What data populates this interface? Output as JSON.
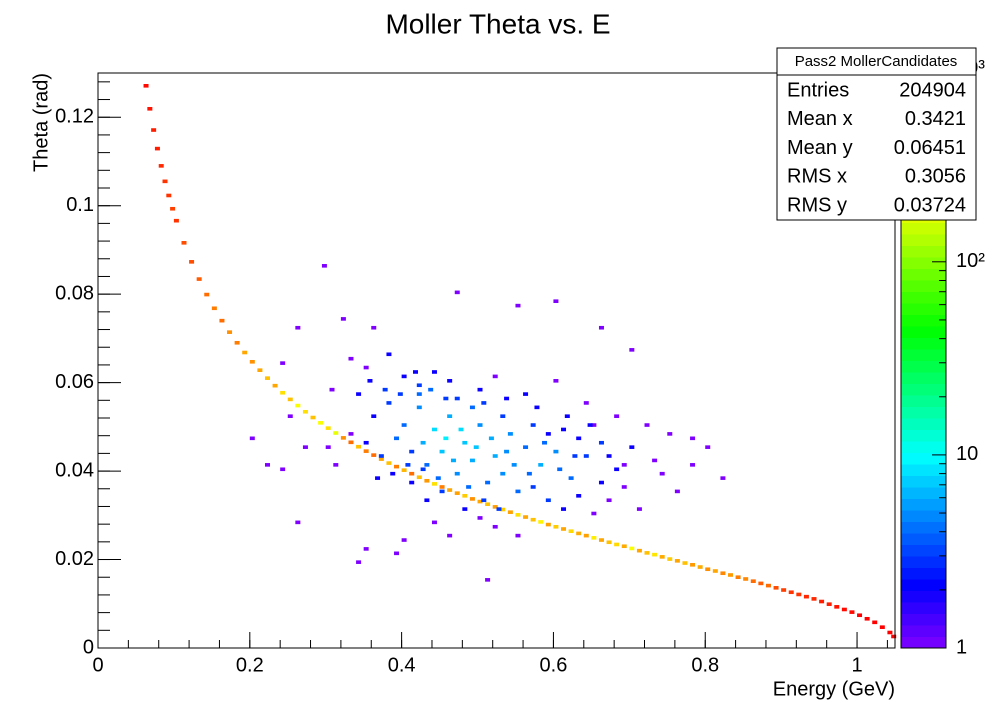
{
  "chart_data": {
    "type": "hist2d",
    "title": "Moller Theta vs. E",
    "x_label": "Energy (GeV)",
    "y_label": "Theta (rad)",
    "xlim": [
      0,
      1.05
    ],
    "ylim": [
      0,
      0.13
    ],
    "xticks": [
      0,
      0.2,
      0.4,
      0.6,
      0.8,
      1
    ],
    "yticks": [
      0,
      0.02,
      0.04,
      0.06,
      0.08,
      0.1,
      0.12
    ],
    "zlim": [
      1,
      950
    ],
    "zticks": [
      1,
      10,
      {
        "value": 100,
        "label": "10²"
      },
      {
        "value": 1000,
        "label": "10³"
      }
    ],
    "z_log": true,
    "palette": "rainbow",
    "stats": {
      "title": "Pass2 MollerCandidates",
      "entries": [
        {
          "label": "Entries",
          "value": 204904
        },
        {
          "label": "Mean x",
          "value": 0.3421
        },
        {
          "label": "Mean y",
          "value": 0.06451
        },
        {
          "label": "RMS x",
          "value": 0.3056
        },
        {
          "label": "RMS y",
          "value": 0.03724
        }
      ]
    },
    "cells": {
      "x": [
        0.06,
        0.065,
        0.07,
        0.075,
        0.08,
        0.085,
        0.09,
        0.095,
        0.1,
        0.11,
        0.12,
        0.13,
        0.14,
        0.15,
        0.16,
        0.17,
        0.18,
        0.19,
        0.2,
        0.21,
        0.22,
        0.23,
        0.24,
        0.25,
        0.26,
        0.27,
        0.28,
        0.29,
        0.3,
        0.31,
        0.32,
        0.33,
        0.34,
        0.35,
        0.36,
        0.37,
        0.38,
        0.39,
        0.4,
        0.41,
        0.42,
        0.43,
        0.44,
        0.45,
        0.46,
        0.47,
        0.48,
        0.49,
        0.5,
        0.51,
        0.52,
        0.53,
        0.54,
        0.55,
        0.56,
        0.57,
        0.58,
        0.59,
        0.6,
        0.61,
        0.62,
        0.63,
        0.64,
        0.65,
        0.66,
        0.67,
        0.68,
        0.69,
        0.7,
        0.71,
        0.72,
        0.73,
        0.74,
        0.75,
        0.76,
        0.77,
        0.78,
        0.79,
        0.8,
        0.81,
        0.82,
        0.83,
        0.84,
        0.85,
        0.86,
        0.87,
        0.88,
        0.89,
        0.9,
        0.91,
        0.92,
        0.93,
        0.94,
        0.95,
        0.96,
        0.97,
        0.98,
        0.99,
        1,
        1.01,
        1.02,
        1.03,
        1.04,
        1.045,
        0.295,
        0.32,
        0.36,
        0.47,
        0.6,
        0.55,
        0.66,
        0.7,
        0.26,
        0.24,
        0.25,
        0.2,
        0.27,
        0.26,
        0.3,
        0.305,
        0.33,
        0.35,
        0.38,
        0.4,
        0.42,
        0.44,
        0.46,
        0.5,
        0.52,
        0.56,
        0.6,
        0.64,
        0.68,
        0.72,
        0.75,
        0.78,
        0.8,
        0.76,
        0.82,
        0.73,
        0.7,
        0.68,
        0.66,
        0.64,
        0.62,
        0.6,
        0.58,
        0.56,
        0.54,
        0.52,
        0.5,
        0.48,
        0.46,
        0.44,
        0.42,
        0.4,
        0.38,
        0.36,
        0.34,
        0.35,
        0.37,
        0.39,
        0.41,
        0.43,
        0.45,
        0.47,
        0.49,
        0.51,
        0.53,
        0.55,
        0.57,
        0.59,
        0.61,
        0.63,
        0.65,
        0.67,
        0.69,
        0.71,
        0.45,
        0.43,
        0.41,
        0.48,
        0.5,
        0.52,
        0.46,
        0.44,
        0.55,
        0.4,
        0.35,
        0.34,
        0.39,
        0.51,
        0.42,
        0.47,
        0.49,
        0.53,
        0.57,
        0.59,
        0.61,
        0.63,
        0.65,
        0.67,
        0.455,
        0.475,
        0.495,
        0.515,
        0.535,
        0.425,
        0.405,
        0.385,
        0.365,
        0.585,
        0.605,
        0.625,
        0.545,
        0.565,
        0.465,
        0.485,
        0.505,
        0.525,
        0.445,
        0.425,
        0.355,
        0.375,
        0.395,
        0.415,
        0.435,
        0.455,
        0.505,
        0.535,
        0.575,
        0.615,
        0.645,
        0.74,
        0.78,
        0.66,
        0.69,
        0.24,
        0.22,
        0.31,
        0.33
      ],
      "y": [
        0.1267,
        0.1215,
        0.1167,
        0.1125,
        0.1086,
        0.1051,
        0.1019,
        0.0989,
        0.0962,
        0.0912,
        0.0869,
        0.083,
        0.0795,
        0.0764,
        0.0736,
        0.071,
        0.0686,
        0.0664,
        0.0643,
        0.0624,
        0.0606,
        0.0589,
        0.0573,
        0.0558,
        0.0544,
        0.053,
        0.0517,
        0.0505,
        0.0493,
        0.0482,
        0.0471,
        0.0461,
        0.0451,
        0.0441,
        0.0432,
        0.0423,
        0.0414,
        0.0406,
        0.0398,
        0.039,
        0.0382,
        0.0374,
        0.0367,
        0.036,
        0.0353,
        0.0346,
        0.034,
        0.0333,
        0.0327,
        0.0321,
        0.0315,
        0.0309,
        0.0303,
        0.0297,
        0.0292,
        0.0286,
        0.0281,
        0.0275,
        0.027,
        0.0265,
        0.026,
        0.0255,
        0.025,
        0.0245,
        0.024,
        0.0235,
        0.023,
        0.0226,
        0.0221,
        0.0216,
        0.0211,
        0.0207,
        0.0202,
        0.0197,
        0.0193,
        0.0188,
        0.0184,
        0.0179,
        0.0174,
        0.017,
        0.0165,
        0.0161,
        0.0156,
        0.0152,
        0.0147,
        0.0142,
        0.0137,
        0.0132,
        0.0127,
        0.0122,
        0.0117,
        0.0112,
        0.0107,
        0.0101,
        0.0095,
        0.0089,
        0.0083,
        0.0077,
        0.007,
        0.0062,
        0.0054,
        0.0043,
        0.0031,
        0.0022,
        0.086,
        0.074,
        0.072,
        0.08,
        0.078,
        0.077,
        0.072,
        0.067,
        0.072,
        0.064,
        0.052,
        0.047,
        0.045,
        0.028,
        0.045,
        0.058,
        0.065,
        0.063,
        0.066,
        0.061,
        0.059,
        0.062,
        0.06,
        0.058,
        0.061,
        0.057,
        0.06,
        0.055,
        0.052,
        0.05,
        0.048,
        0.047,
        0.045,
        0.035,
        0.038,
        0.042,
        0.045,
        0.04,
        0.046,
        0.043,
        0.038,
        0.044,
        0.041,
        0.045,
        0.048,
        0.043,
        0.05,
        0.046,
        0.052,
        0.049,
        0.054,
        0.05,
        0.055,
        0.052,
        0.057,
        0.046,
        0.043,
        0.047,
        0.044,
        0.041,
        0.044,
        0.039,
        0.042,
        0.037,
        0.039,
        0.035,
        0.036,
        0.033,
        0.031,
        0.034,
        0.03,
        0.033,
        0.036,
        0.031,
        0.035,
        0.033,
        0.037,
        0.031,
        0.029,
        0.027,
        0.025,
        0.028,
        0.025,
        0.024,
        0.022,
        0.019,
        0.021,
        0.015,
        0.057,
        0.056,
        0.054,
        0.052,
        0.05,
        0.048,
        0.049,
        0.047,
        0.05,
        0.043,
        0.047,
        0.049,
        0.045,
        0.047,
        0.044,
        0.046,
        0.041,
        0.039,
        0.038,
        0.046,
        0.04,
        0.043,
        0.041,
        0.039,
        0.042,
        0.036,
        0.033,
        0.031,
        0.038,
        0.04,
        0.06,
        0.058,
        0.057,
        0.062,
        0.058,
        0.056,
        0.055,
        0.056,
        0.054,
        0.052,
        0.05,
        0.039,
        0.041,
        0.037,
        0.041,
        0.04,
        0.041,
        0.041,
        0.048
      ],
      "z": [
        900,
        850,
        800,
        800,
        750,
        700,
        700,
        650,
        700,
        600,
        600,
        550,
        500,
        450,
        500,
        400,
        450,
        350,
        400,
        350,
        300,
        350,
        250,
        300,
        200,
        250,
        300,
        200,
        250,
        180,
        400,
        500,
        300,
        450,
        500,
        350,
        300,
        450,
        320,
        500,
        300,
        380,
        250,
        450,
        350,
        360,
        280,
        400,
        350,
        300,
        370,
        280,
        360,
        250,
        350,
        300,
        220,
        360,
        280,
        350,
        260,
        340,
        360,
        230,
        350,
        300,
        260,
        340,
        200,
        350,
        300,
        240,
        340,
        280,
        350,
        300,
        380,
        340,
        400,
        350,
        420,
        380,
        450,
        420,
        500,
        550,
        500,
        600,
        650,
        700,
        700,
        750,
        750,
        800,
        800,
        850,
        900,
        900,
        950,
        950,
        950,
        950,
        950,
        950,
        1,
        1,
        1,
        1,
        1,
        1,
        1,
        1,
        1,
        1,
        1,
        1,
        1,
        1,
        1,
        1,
        1,
        1,
        2,
        2,
        3,
        2,
        2,
        2,
        1,
        2,
        1,
        1,
        1,
        1,
        1,
        1,
        1,
        1,
        1,
        1,
        2,
        2,
        3,
        3,
        4,
        5,
        6,
        4,
        5,
        6,
        5,
        7,
        6,
        8,
        5,
        4,
        3,
        2,
        2,
        2,
        3,
        4,
        3,
        4,
        7,
        5,
        6,
        4,
        5,
        4,
        3,
        3,
        2,
        2,
        1,
        1,
        1,
        1,
        3,
        2,
        2,
        2,
        1,
        1,
        1,
        1,
        1,
        1,
        1,
        1,
        1,
        1,
        4,
        3,
        4,
        3,
        3,
        2,
        2,
        2,
        1,
        2,
        9,
        8,
        7,
        6,
        5,
        6,
        3,
        2,
        2,
        4,
        4,
        3,
        5,
        4,
        6,
        4,
        3,
        3,
        4,
        3,
        2,
        3,
        3,
        2,
        4,
        3,
        3,
        2,
        2,
        2,
        2,
        1,
        1,
        2,
        1,
        1,
        1,
        1,
        1
      ]
    }
  }
}
